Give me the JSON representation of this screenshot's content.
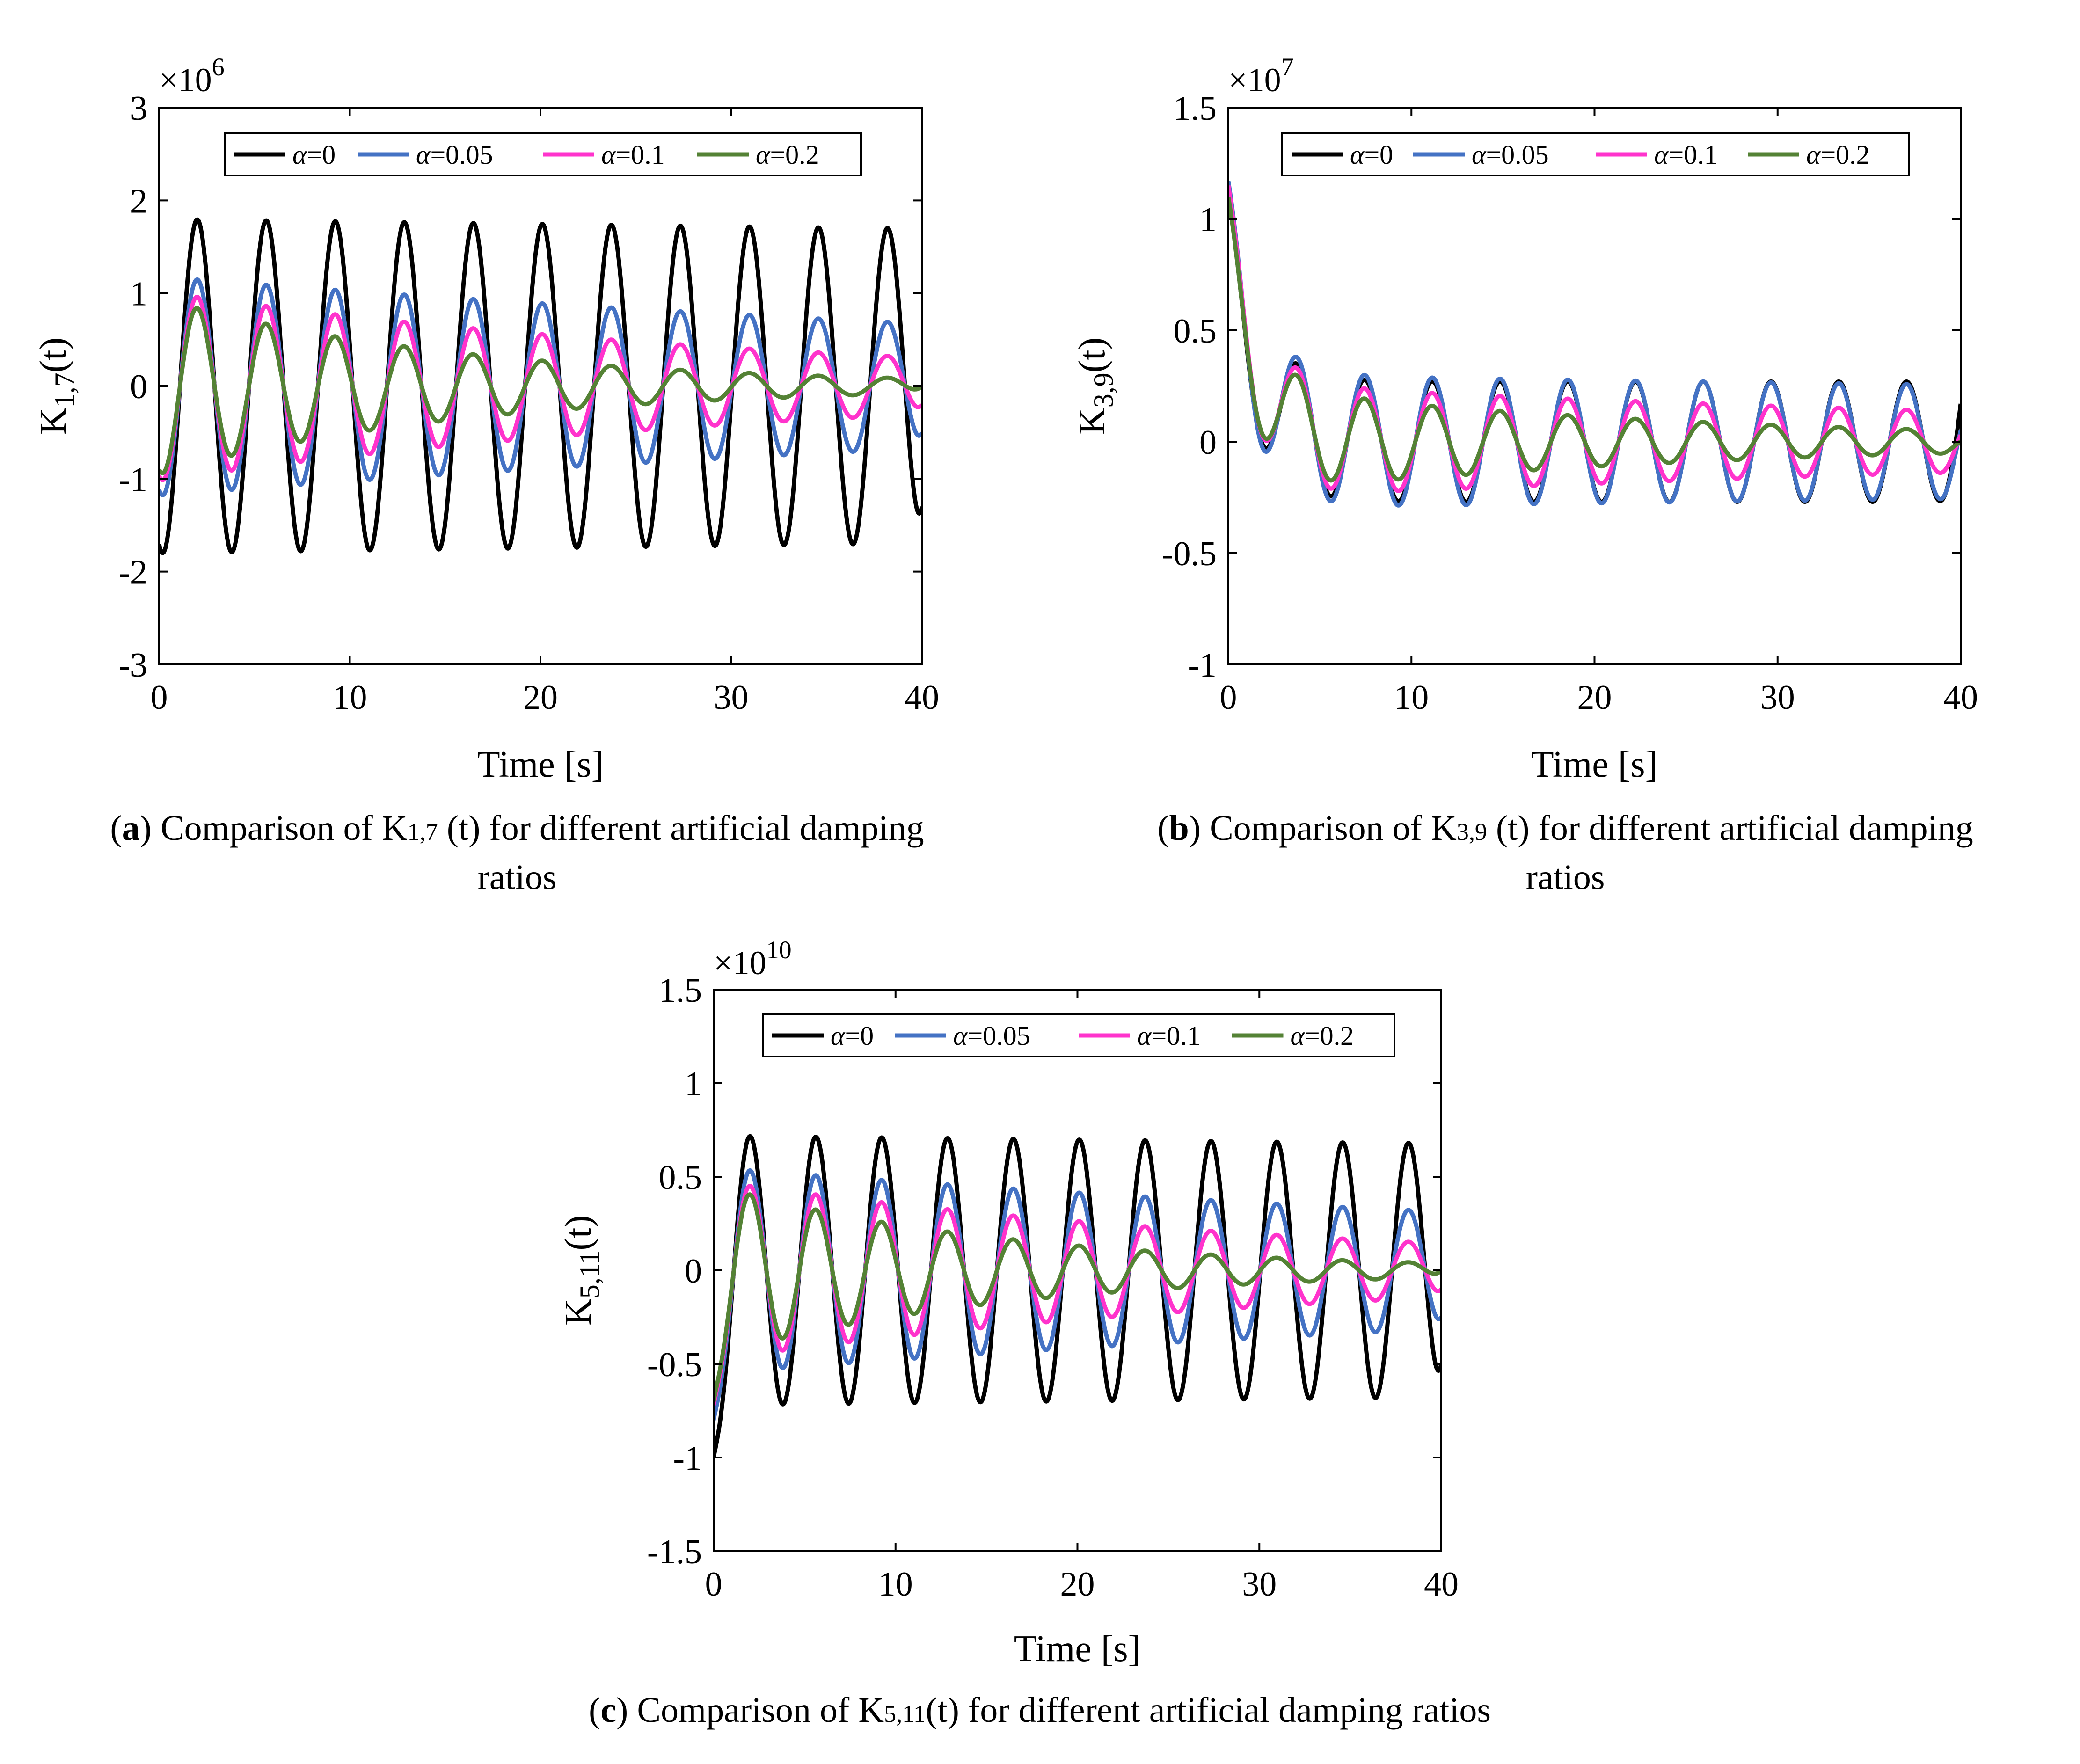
{
  "figure": {
    "caption_a": {
      "letter": "a",
      "text": " Comparison of K",
      "sub": "1,7",
      "rest": " (t) for different artificial damping",
      "line2": "ratios"
    },
    "caption_b": {
      "letter": "b",
      "text": " Comparison of K",
      "sub": "3,9",
      "rest": " (t) for different artificial damping",
      "line2": "ratios"
    },
    "caption_c": {
      "letter": "c",
      "text": " Comparison of K",
      "sub": "5,11",
      "rest": "(t) for different artificial damping ratios"
    }
  },
  "chart_data": [
    {
      "id": "a",
      "type": "line",
      "title": "",
      "xlabel": "Time [s]",
      "ylabel_main": "K",
      "ylabel_sub": "1,7",
      "ylabel_tail": "(t)",
      "exponent_base": "×10",
      "exponent_power": "6",
      "xlim": [
        0,
        40
      ],
      "ylim": [
        -3,
        3
      ],
      "xticks": [
        0,
        10,
        20,
        30,
        40
      ],
      "xtick_labels": [
        "0",
        "10",
        "20",
        "30",
        "40"
      ],
      "yticks": [
        -3,
        -2,
        -1,
        0,
        1,
        2,
        3
      ],
      "ytick_labels": [
        "-3",
        "-2",
        "-1",
        "0",
        "1",
        "2",
        "3"
      ],
      "legend_position": "top",
      "series": [
        {
          "name": "α=0",
          "symbol": "α",
          "value_text": "=0",
          "color": "#000000",
          "model": {
            "amplitude": 1.8,
            "decay": 0.0015,
            "offset": 0,
            "period": 3.62,
            "phase": -1.9,
            "end_value": -1.3
          }
        },
        {
          "name": "α=0.05",
          "symbol": "α",
          "value_text": "=0.05",
          "color": "#4472C4",
          "model": {
            "amplitude": 1.18,
            "decay": 0.014,
            "offset": 0,
            "period": 3.62,
            "phase": -1.9,
            "end_value": -0.5
          }
        },
        {
          "name": "α=0.1",
          "symbol": "α",
          "value_text": "=0.1",
          "color": "#FF33CC",
          "model": {
            "amplitude": 1.02,
            "decay": 0.03,
            "offset": 0,
            "period": 3.62,
            "phase": -1.9,
            "end_value": -0.2
          }
        },
        {
          "name": "α=0.2",
          "symbol": "α",
          "value_text": "=0.2",
          "color": "#548235",
          "model": {
            "amplitude": 0.95,
            "decay": 0.062,
            "offset": 0,
            "period": 3.62,
            "phase": -1.9,
            "end_value": 0.0
          }
        }
      ]
    },
    {
      "id": "b",
      "type": "line",
      "title": "",
      "xlabel": "Time [s]",
      "ylabel_main": "K",
      "ylabel_sub": "3,9",
      "ylabel_tail": "(t)",
      "exponent_base": "×10",
      "exponent_power": "7",
      "xlim": [
        0,
        40
      ],
      "ylim": [
        -1,
        1.5
      ],
      "xticks": [
        0,
        10,
        20,
        30,
        40
      ],
      "xtick_labels": [
        "0",
        "10",
        "20",
        "30",
        "40"
      ],
      "yticks": [
        -1,
        -0.5,
        0,
        0.5,
        1,
        1.5
      ],
      "ytick_labels": [
        "-1",
        "-0.5",
        "0",
        "0.5",
        "1",
        "1.5"
      ],
      "legend_position": "top",
      "series": [
        {
          "name": "α=0",
          "symbol": "α",
          "value_text": "=0",
          "color": "#000000",
          "model": {
            "amplitude": 0.27,
            "decay": 0.0,
            "offset": 0,
            "period": 3.7,
            "phase": 1.5,
            "start_value": 1.1,
            "transient_tau": 1.6,
            "end_value": 0.17
          }
        },
        {
          "name": "α=0.05",
          "symbol": "α",
          "value_text": "=0.05",
          "color": "#4472C4",
          "model": {
            "amplitude": 0.3,
            "decay": 0.004,
            "offset": 0,
            "period": 3.7,
            "phase": 1.5,
            "start_value": 1.17,
            "transient_tau": 1.6,
            "end_value": 0.05
          }
        },
        {
          "name": "α=0.1",
          "symbol": "α",
          "value_text": "=0.1",
          "color": "#FF33CC",
          "model": {
            "amplitude": 0.26,
            "decay": 0.016,
            "offset": 0,
            "period": 3.7,
            "phase": 1.5,
            "start_value": 1.15,
            "transient_tau": 1.6,
            "end_value": 0.03
          }
        },
        {
          "name": "α=0.2",
          "symbol": "α",
          "value_text": "=0.2",
          "color": "#548235",
          "model": {
            "amplitude": 0.25,
            "decay": 0.04,
            "offset": 0,
            "period": 3.7,
            "phase": 1.5,
            "start_value": 1.1,
            "transient_tau": 1.6,
            "end_value": 0.0
          }
        }
      ]
    },
    {
      "id": "c",
      "type": "line",
      "title": "",
      "xlabel": "Time [s]",
      "ylabel_main": "K",
      "ylabel_sub": "5,11",
      "ylabel_tail": "(t)",
      "exponent_base": "×10",
      "exponent_power": "10",
      "xlim": [
        0,
        40
      ],
      "ylim": [
        -1.5,
        1.5
      ],
      "xticks": [
        0,
        10,
        20,
        30,
        40
      ],
      "xtick_labels": [
        "0",
        "10",
        "20",
        "30",
        "40"
      ],
      "yticks": [
        -1.5,
        -1,
        -0.5,
        0,
        0.5,
        1,
        1.5
      ],
      "ytick_labels": [
        "-1.5",
        "-1",
        "-0.5",
        "0",
        "0.5",
        "1",
        "1.5"
      ],
      "legend_position": "top",
      "series": [
        {
          "name": "α=0",
          "symbol": "α",
          "value_text": "=0",
          "color": "#000000",
          "model": {
            "amplitude": 0.72,
            "decay": 0.0015,
            "offset": 0,
            "period": 3.62,
            "phase": -1.9,
            "start_value": -1.0,
            "end_value": -0.5
          }
        },
        {
          "name": "α=0.05",
          "symbol": "α",
          "value_text": "=0.05",
          "color": "#4472C4",
          "model": {
            "amplitude": 0.55,
            "decay": 0.014,
            "offset": 0,
            "period": 3.62,
            "phase": -1.9,
            "start_value": -0.8,
            "end_value": -0.25
          }
        },
        {
          "name": "α=0.1",
          "symbol": "α",
          "value_text": "=0.1",
          "color": "#FF33CC",
          "model": {
            "amplitude": 0.48,
            "decay": 0.03,
            "offset": 0,
            "period": 3.62,
            "phase": -1.9,
            "start_value": -0.72,
            "end_value": -0.1
          }
        },
        {
          "name": "α=0.2",
          "symbol": "α",
          "value_text": "=0.2",
          "color": "#548235",
          "model": {
            "amplitude": 0.46,
            "decay": 0.062,
            "offset": 0,
            "period": 3.62,
            "phase": -1.9,
            "start_value": -0.7,
            "end_value": 0.0
          }
        }
      ]
    }
  ]
}
